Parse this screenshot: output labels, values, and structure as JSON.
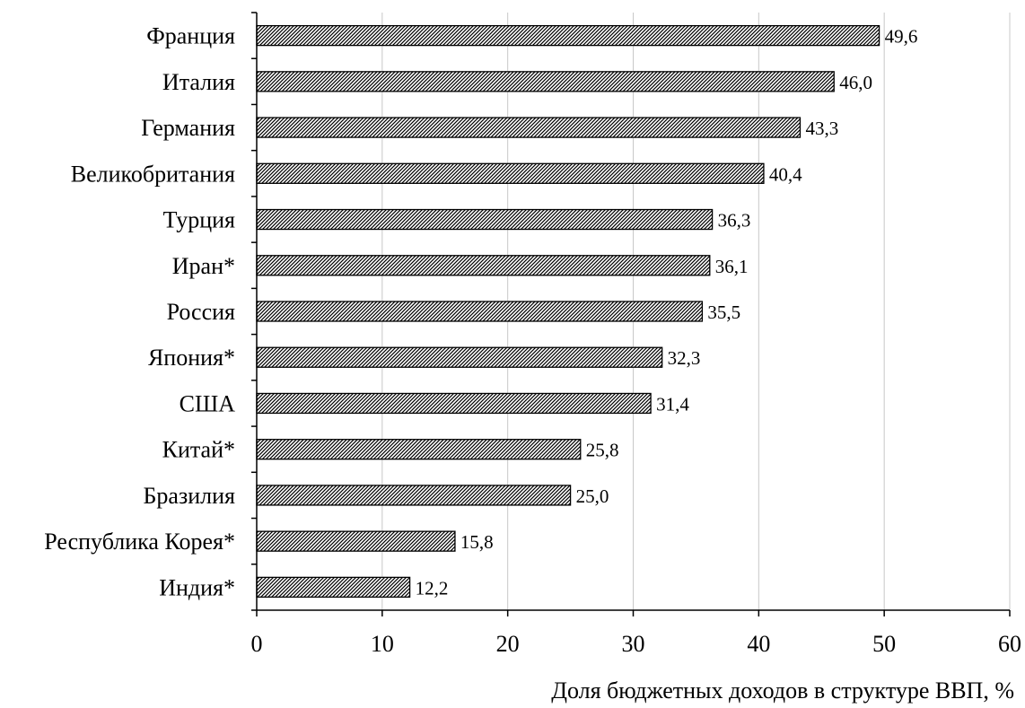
{
  "chart_data": {
    "type": "bar",
    "orientation": "horizontal",
    "categories": [
      "Франция",
      "Италия",
      "Германия",
      "Великобритания",
      "Турция",
      "Иран*",
      "Россия",
      "Япония*",
      "США",
      "Китай*",
      "Бразилия",
      "Республика Корея*",
      "Индия*"
    ],
    "values": [
      49.6,
      46.0,
      43.3,
      40.4,
      36.3,
      36.1,
      35.5,
      32.3,
      31.4,
      25.8,
      25.0,
      15.8,
      12.2
    ],
    "value_labels": [
      "49,6",
      "46,0",
      "43,3",
      "40,4",
      "36,3",
      "36,1",
      "35,5",
      "32,3",
      "31,4",
      "25,8",
      "25,0",
      "15,8",
      "12,2"
    ],
    "xlabel": "Доля бюджетных доходов в структуре ВВП, %",
    "xlim": [
      0,
      60
    ],
    "xticks": [
      0,
      10,
      20,
      30,
      40,
      50,
      60
    ],
    "grid": "vertical",
    "bar_fill": "diagonal-hatch",
    "bar_color": "#000000",
    "grid_color": "#c8c8c8",
    "legend": "none"
  }
}
